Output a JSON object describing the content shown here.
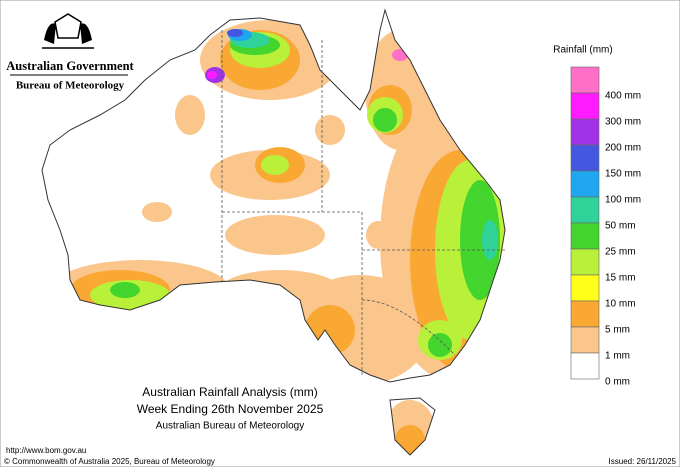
{
  "header": {
    "title": "Australian Government",
    "subtitle": "Bureau of Meteorology"
  },
  "legend": {
    "title": "Rainfall (mm)",
    "items": [
      {
        "label": "400 mm",
        "color": "#ff6ec7"
      },
      {
        "label": "300 mm",
        "color": "#ff1aff"
      },
      {
        "label": "200 mm",
        "color": "#a232e8"
      },
      {
        "label": "150 mm",
        "color": "#4457e0"
      },
      {
        "label": "100 mm",
        "color": "#1ea7f0"
      },
      {
        "label": "50 mm",
        "color": "#2fd39a"
      },
      {
        "label": "25 mm",
        "color": "#44d42e"
      },
      {
        "label": "15 mm",
        "color": "#b8f03a"
      },
      {
        "label": "10 mm",
        "color": "#ffff1a"
      },
      {
        "label": "5 mm",
        "color": "#f9a834"
      },
      {
        "label": "1 mm",
        "color": "#fbc68c"
      },
      {
        "label": "0 mm",
        "color": "#ffffff"
      }
    ]
  },
  "caption": {
    "title": "Australian Rainfall Analysis (mm)",
    "period": "Week Ending 26th November 2025",
    "source": "Australian Bureau of Meteorology"
  },
  "footer": {
    "url": "http://www.bom.gov.au",
    "copyright": "© Commonwealth of Australia 2025, Bureau of Meteorology",
    "issued": "Issued: 26/11/2025"
  }
}
